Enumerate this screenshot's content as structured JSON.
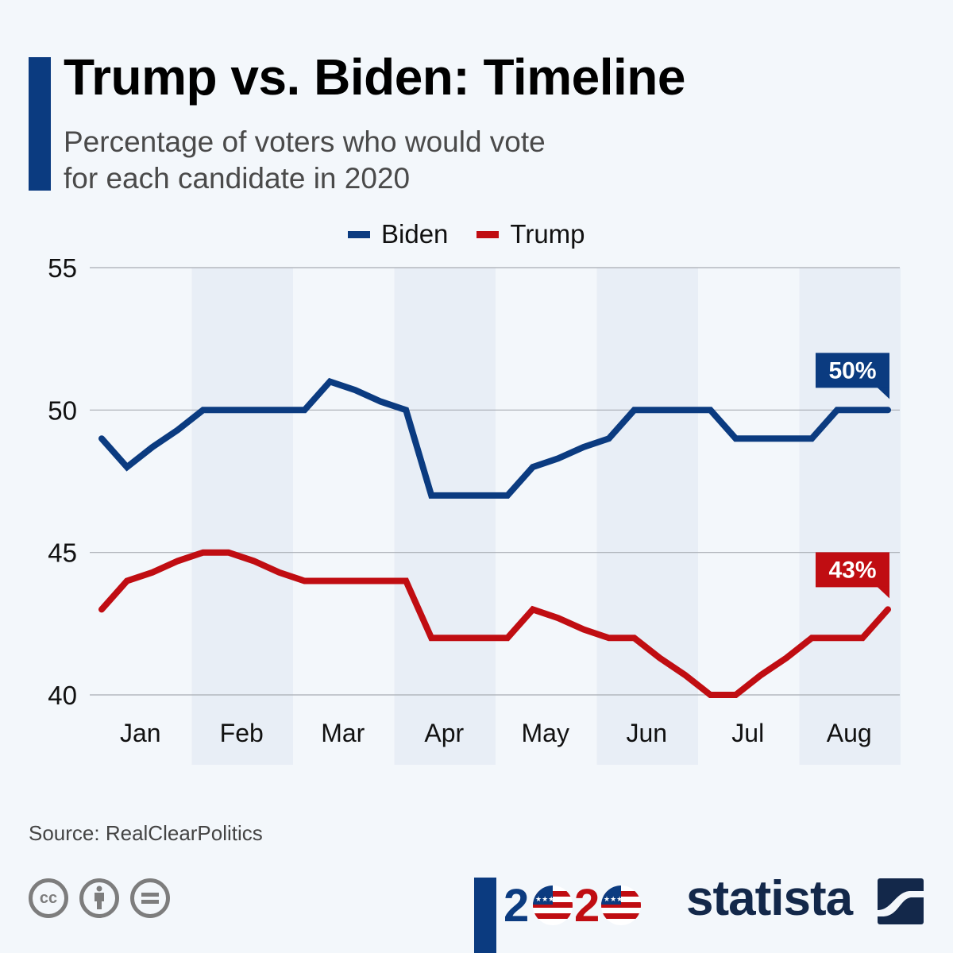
{
  "header": {
    "title": "Trump vs. Biden: Timeline",
    "subtitle": "Percentage of voters who would vote for each candidate in 2020"
  },
  "footer": {
    "source": "Source: RealClearPolitics",
    "cc_icons": [
      "cc-icon",
      "by-attribution-icon",
      "no-derivatives-icon"
    ],
    "logo_2020": "2020",
    "brand": "statista"
  },
  "colors": {
    "biden": "#0b3b80",
    "trump": "#c00d12",
    "band": "#e8eef6",
    "grid": "#a9adb3"
  },
  "chart_data": {
    "type": "line",
    "title": "Trump vs. Biden: Timeline",
    "subtitle": "Percentage of voters who would vote for each candidate in 2020",
    "xlabel": "",
    "ylabel": "",
    "ylim": [
      40,
      55
    ],
    "yticks": [
      40,
      45,
      50,
      55
    ],
    "grid": true,
    "legend": "top-center",
    "months": [
      "Jan",
      "Feb",
      "Mar",
      "Apr",
      "May",
      "Jun",
      "Jul",
      "Aug"
    ],
    "x_points_per_month": 4,
    "x": [
      0,
      1,
      2,
      3,
      4,
      5,
      6,
      7,
      8,
      9,
      10,
      11,
      12,
      13,
      14,
      15,
      16,
      17,
      18,
      19,
      20,
      21,
      22,
      23,
      24,
      25,
      26,
      27,
      28,
      29,
      30,
      31
    ],
    "series": [
      {
        "name": "Biden",
        "values": [
          49,
          48,
          48.7,
          49.3,
          50,
          50,
          50,
          50,
          50,
          51,
          50.7,
          50.3,
          50,
          47,
          47,
          47,
          47,
          48,
          48.3,
          48.7,
          49,
          50,
          50,
          50,
          50,
          49,
          49,
          49,
          49,
          50,
          50,
          50
        ],
        "end_label": "50%"
      },
      {
        "name": "Trump",
        "values": [
          43,
          44,
          44.3,
          44.7,
          45,
          45,
          44.7,
          44.3,
          44,
          44,
          44,
          44,
          44,
          42,
          42,
          42,
          42,
          43,
          42.7,
          42.3,
          42,
          42,
          41.3,
          40.7,
          40,
          40,
          40.7,
          41.3,
          42,
          42,
          42,
          43
        ],
        "end_label": "43%"
      }
    ]
  }
}
